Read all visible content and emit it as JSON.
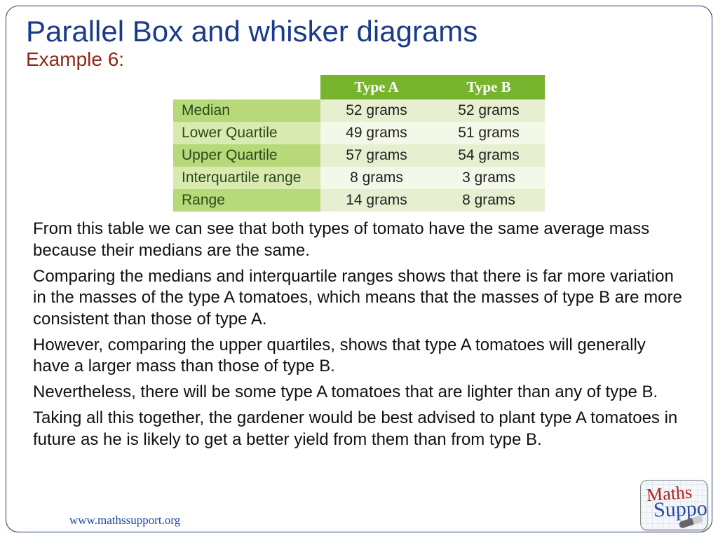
{
  "title": "Parallel Box and whisker diagrams",
  "subtitle": "Example 6:",
  "table": {
    "columns": [
      "Type A",
      "Type B"
    ],
    "rows": [
      {
        "label": "Median",
        "a": "52 grams",
        "b": "52 grams"
      },
      {
        "label": "Lower Quartile",
        "a": "49 grams",
        "b": "51 grams"
      },
      {
        "label": "Upper Quartile",
        "a": "57 grams",
        "b": "54 grams"
      },
      {
        "label": "Interquartile range",
        "a": "8 grams",
        "b": "3 grams"
      },
      {
        "label": "Range",
        "a": "14 grams",
        "b": "8 grams"
      }
    ],
    "header_bg": "#77b42d",
    "header_fg": "#ffffff",
    "rowlabel_bg_dark": "#b7d97a",
    "rowlabel_bg_light": "#d9eab0",
    "cell_bg_dark": "#e6f0d0",
    "cell_bg_light": "#f3f8e8",
    "font_size": 21
  },
  "paragraphs": [
    "From this table we can see that both types of tomato have the same average mass because their medians are the same.",
    "Comparing the medians and interquartile ranges shows that there is far more variation in the masses of the type A tomatoes, which means that the masses of type B are more consistent than those of type A.",
    "However, comparing the upper quartiles, shows that type A tomatoes will generally have a larger mass than those of type B.",
    "Nevertheless, there will be some type A tomatoes that are lighter than any of type B.",
    "Taking all this together, the gardener would be best advised to plant type A tomatoes in future as he is likely to get a better yield from them than from type B."
  ],
  "footer_url": "www.mathssupport.org",
  "logo": {
    "line1": "Maths",
    "line2": "Support"
  },
  "colors": {
    "title": "#1a3a8a",
    "subtitle": "#8a2a1a",
    "body_text": "#111111",
    "border": "#1a3a6e",
    "footer": "#1a4aa8"
  }
}
